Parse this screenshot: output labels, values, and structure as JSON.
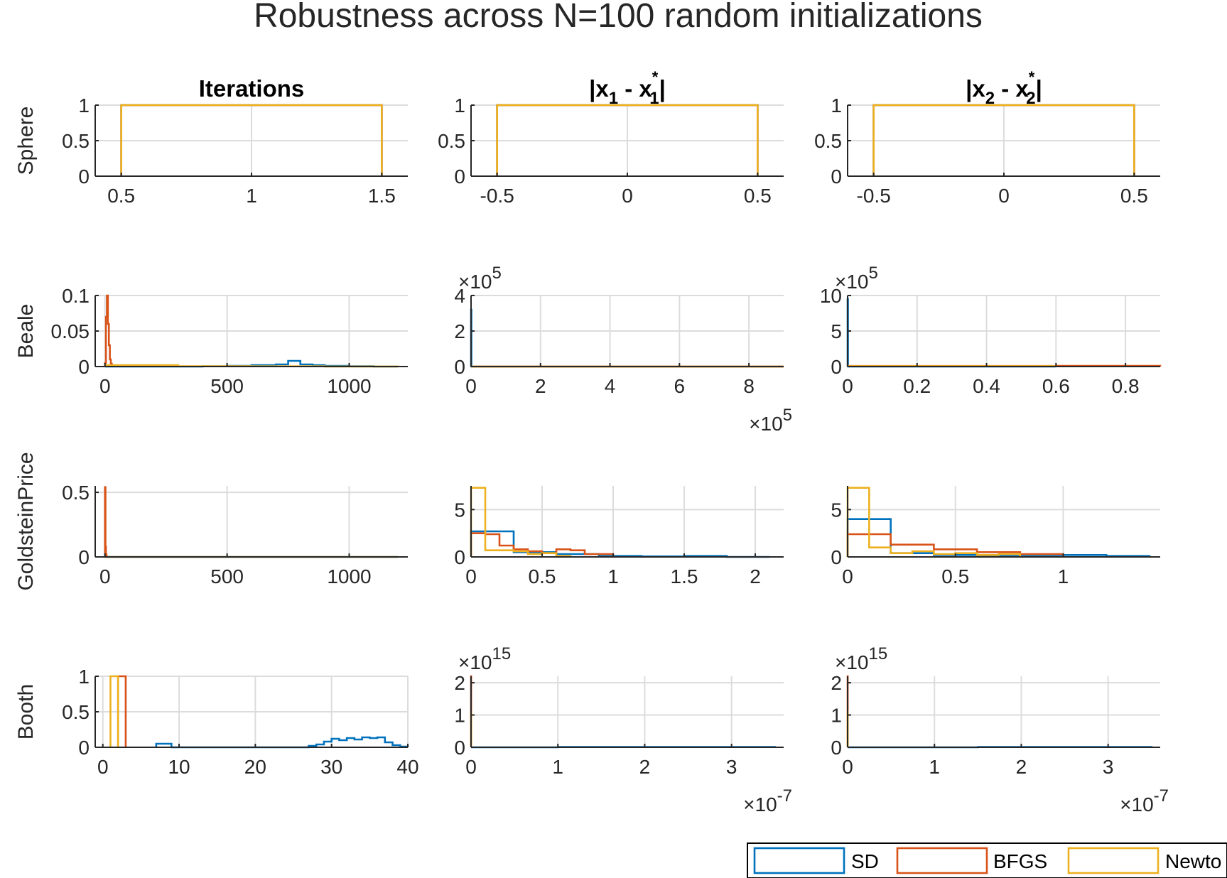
{
  "title": "Robustness across N=100 random initializations",
  "columns": [
    "Iterations",
    "|x_1 - x_1^*|",
    "|x_2 - x_2^*|"
  ],
  "rows": [
    "Sphere",
    "Beale",
    "GoldsteinPrice",
    "Booth"
  ],
  "legend": {
    "entries": [
      {
        "label": "SD",
        "color": "#0072BD"
      },
      {
        "label": "BFGS",
        "color": "#D95319"
      },
      {
        "label": "Newto",
        "color": "#EDB120"
      }
    ],
    "placement": "bottom-right"
  },
  "colors": {
    "SD": "#0072BD",
    "BFGS": "#D95319",
    "Newton": "#EDB120",
    "grid": "#DCDCDC",
    "axis": "#262626"
  },
  "chart_data": [
    {
      "type": "histogram",
      "row": "Sphere",
      "column": "Iterations",
      "xlim": [
        0.4,
        1.6
      ],
      "ylim": [
        0,
        1
      ],
      "xticks": [
        0.5,
        1,
        1.5
      ],
      "xticklabels": [
        "0.5",
        "1",
        "1.5"
      ],
      "yticks": [
        0,
        0.5,
        1
      ],
      "yticklabels": [
        "0",
        "0.5",
        "1"
      ],
      "series": [
        {
          "edges": [
            0.5,
            1.5
          ],
          "values": [
            1
          ]
        },
        {
          "edges": [
            0.5,
            1.5
          ],
          "values": [
            1
          ]
        },
        {
          "edges": [
            0.5,
            1.5
          ],
          "values": [
            1
          ]
        }
      ]
    },
    {
      "type": "histogram",
      "row": "Sphere",
      "column": "|x_1 - x_1^*|",
      "xlim": [
        -0.6,
        0.6
      ],
      "ylim": [
        0,
        1
      ],
      "xticks": [
        -0.5,
        0,
        0.5
      ],
      "xticklabels": [
        "-0.5",
        "0",
        "0.5"
      ],
      "yticks": [
        0,
        0.5,
        1
      ],
      "yticklabels": [
        "0",
        "0.5",
        "1"
      ],
      "series": [
        {
          "edges": [
            -0.5,
            0.5
          ],
          "values": [
            1
          ]
        },
        {
          "edges": [
            -0.5,
            0.5
          ],
          "values": [
            1
          ]
        },
        {
          "edges": [
            -0.5,
            0.5
          ],
          "values": [
            1
          ]
        }
      ]
    },
    {
      "type": "histogram",
      "row": "Sphere",
      "column": "|x_2 - x_2^*|",
      "xlim": [
        -0.6,
        0.6
      ],
      "ylim": [
        0,
        1
      ],
      "xticks": [
        -0.5,
        0,
        0.5
      ],
      "xticklabels": [
        "-0.5",
        "0",
        "0.5"
      ],
      "yticks": [
        0,
        0.5,
        1
      ],
      "yticklabels": [
        "0",
        "0.5",
        "1"
      ],
      "series": [
        {
          "edges": [
            -0.5,
            0.5
          ],
          "values": [
            1
          ]
        },
        {
          "edges": [
            -0.5,
            0.5
          ],
          "values": [
            1
          ]
        },
        {
          "edges": [
            -0.5,
            0.5
          ],
          "values": [
            1
          ]
        }
      ]
    },
    {
      "type": "histogram",
      "row": "Beale",
      "column": "Iterations",
      "xlim": [
        -40,
        1240
      ],
      "ylim": [
        0,
        0.1
      ],
      "xticks": [
        0,
        500,
        1000
      ],
      "xticklabels": [
        "0",
        "500",
        "1000"
      ],
      "yticks": [
        0,
        0.05,
        0.1
      ],
      "yticklabels": [
        "0",
        "0.05",
        "0.1"
      ],
      "series": [
        {
          "edges": [
            0,
            400,
            500,
            600,
            700,
            750,
            800,
            850,
            900,
            1000,
            1100,
            1200
          ],
          "values": [
            0,
            0.0005,
            0.001,
            0.002,
            0.003,
            0.008,
            0.003,
            0.002,
            0.001,
            0.0005,
            0
          ]
        },
        {
          "edges": [
            0,
            4,
            8,
            12,
            16,
            20,
            24,
            28,
            32
          ],
          "values": [
            0.005,
            0.07,
            0.1,
            0.06,
            0.03,
            0.01,
            0.004,
            0.001
          ]
        },
        {
          "edges": [
            0,
            300,
            600,
            900,
            1200
          ],
          "values": [
            0.002,
            0.0005,
            0.0003,
            0.0001
          ]
        }
      ]
    },
    {
      "type": "histogram",
      "row": "Beale",
      "column": "|x_1 - x_1^*|",
      "xlim": [
        0,
        900000
      ],
      "ylim": [
        0,
        400000
      ],
      "xticks": [
        0,
        200000,
        400000,
        600000,
        800000
      ],
      "xticklabels": [
        "0",
        "2",
        "4",
        "6",
        "8"
      ],
      "yticks": [
        0,
        200000,
        400000
      ],
      "yticklabels": [
        "0",
        "2",
        "4"
      ],
      "yexponent": "10^5",
      "xexponent": "10^5",
      "series": [
        {
          "edges": [
            0,
            1000,
            900000
          ],
          "values": [
            320000,
            0
          ]
        },
        {
          "edges": [
            0,
            900000
          ],
          "values": [
            0
          ]
        },
        {
          "edges": [
            0,
            900000
          ],
          "values": [
            0
          ]
        }
      ]
    },
    {
      "type": "histogram",
      "row": "Beale",
      "column": "|x_2 - x_2^*|",
      "xlim": [
        0,
        0.9
      ],
      "ylim": [
        0,
        1000000
      ],
      "xticks": [
        0,
        0.2,
        0.4,
        0.6,
        0.8
      ],
      "xticklabels": [
        "0",
        "0.2",
        "0.4",
        "0.6",
        "0.8"
      ],
      "yticks": [
        0,
        500000,
        1000000
      ],
      "yticklabels": [
        "0",
        "5",
        "10"
      ],
      "yexponent": "10^5",
      "series": [
        {
          "edges": [
            0,
            0.001,
            0.6
          ],
          "values": [
            950000,
            0
          ]
        },
        {
          "edges": [
            0,
            0.6,
            0.9
          ],
          "values": [
            8000,
            10000
          ]
        },
        {
          "edges": [
            0,
            0.6
          ],
          "values": [
            6000
          ]
        }
      ]
    },
    {
      "type": "histogram",
      "row": "GoldsteinPrice",
      "column": "Iterations",
      "xlim": [
        -40,
        1240
      ],
      "ylim": [
        0,
        0.55
      ],
      "xticks": [
        0,
        500,
        1000
      ],
      "xticklabels": [
        "0",
        "500",
        "1000"
      ],
      "yticks": [
        0,
        0.5
      ],
      "yticklabels": [
        "0",
        "0.5"
      ],
      "series": [
        {
          "edges": [
            0,
            1200
          ],
          "values": [
            0
          ]
        },
        {
          "edges": [
            0,
            2,
            4,
            6,
            8,
            10
          ],
          "values": [
            0.54,
            0.08,
            0.02,
            0.005,
            0
          ]
        },
        {
          "edges": [
            0,
            1200
          ],
          "values": [
            0
          ]
        }
      ]
    },
    {
      "type": "histogram",
      "row": "GoldsteinPrice",
      "column": "|x_1 - x_1^*|",
      "xlim": [
        0,
        2.2
      ],
      "ylim": [
        0,
        7.5
      ],
      "xticks": [
        0,
        0.5,
        1,
        1.5,
        2
      ],
      "xticklabels": [
        "0",
        "0.5",
        "1",
        "1.5",
        "2"
      ],
      "yticks": [
        0,
        5
      ],
      "yticklabels": [
        "0",
        "5"
      ],
      "series": [
        {
          "edges": [
            0,
            0.3,
            0.6,
            0.9,
            1.2,
            1.5,
            1.8,
            2.1
          ],
          "values": [
            2.7,
            0.5,
            0.3,
            0.1,
            0.05,
            0.1,
            0
          ]
        },
        {
          "edges": [
            0,
            0.1,
            0.2,
            0.3,
            0.4,
            0.5,
            0.6,
            0.7,
            0.8,
            0.9,
            1.0
          ],
          "values": [
            2.5,
            2.4,
            1.2,
            0.8,
            0.6,
            0.4,
            0.8,
            0.7,
            0.3,
            0.3
          ]
        },
        {
          "edges": [
            0,
            0.1,
            0.2,
            0.3,
            0.4,
            0.5,
            0.6,
            0.7
          ],
          "values": [
            7.3,
            0.7,
            0.7,
            0.6,
            0.3,
            0.4,
            0.1
          ]
        }
      ]
    },
    {
      "type": "histogram",
      "row": "GoldsteinPrice",
      "column": "|x_2 - x_2^*|",
      "xlim": [
        0,
        1.45
      ],
      "ylim": [
        0,
        7.5
      ],
      "xticks": [
        0,
        0.5,
        1
      ],
      "xticklabels": [
        "0",
        "0.5",
        "1"
      ],
      "yticks": [
        0,
        5
      ],
      "yticklabels": [
        "0",
        "5"
      ],
      "series": [
        {
          "edges": [
            0,
            0.2,
            0.4,
            0.6,
            0.8,
            1.0,
            1.2,
            1.4
          ],
          "values": [
            4.0,
            0.4,
            0.2,
            0.1,
            0.1,
            0.2,
            0.1
          ]
        },
        {
          "edges": [
            0,
            0.2,
            0.4,
            0.6,
            0.8,
            1.0
          ],
          "values": [
            2.4,
            1.3,
            0.8,
            0.5,
            0.3
          ]
        },
        {
          "edges": [
            0,
            0.1,
            0.2,
            0.3,
            0.4,
            0.5,
            0.6,
            0.7,
            0.8
          ],
          "values": [
            7.3,
            1.0,
            0.4,
            0.6,
            0.3,
            0.4,
            0.2,
            0.3
          ]
        }
      ]
    },
    {
      "type": "histogram",
      "row": "Booth",
      "column": "Iterations",
      "xlim": [
        -1,
        40
      ],
      "ylim": [
        0,
        1
      ],
      "xticks": [
        0,
        10,
        20,
        30,
        40
      ],
      "xticklabels": [
        "0",
        "10",
        "20",
        "30",
        "40"
      ],
      "yticks": [
        0,
        0.5,
        1
      ],
      "yticklabels": [
        "0",
        "0.5",
        "1"
      ],
      "series": [
        {
          "edges": [
            7,
            9,
            11,
            27,
            28,
            29,
            30,
            31,
            32,
            33,
            34,
            35,
            36,
            37,
            38,
            39,
            40
          ],
          "values": [
            0.05,
            0,
            0,
            0.02,
            0.04,
            0.08,
            0.12,
            0.1,
            0.13,
            0.11,
            0.14,
            0.13,
            0.14,
            0.07,
            0.03,
            0.01
          ]
        },
        {
          "edges": [
            2,
            3
          ],
          "values": [
            1
          ]
        },
        {
          "edges": [
            1,
            2
          ],
          "values": [
            1
          ]
        }
      ]
    },
    {
      "type": "histogram",
      "row": "Booth",
      "column": "|x_1 - x_1^*|",
      "xlim": [
        0,
        3.6e-07
      ],
      "ylim": [
        0,
        2200000000000000.0
      ],
      "xticks": [
        0,
        1e-07,
        2e-07,
        3e-07
      ],
      "xticklabels": [
        "0",
        "1",
        "2",
        "3"
      ],
      "yticks": [
        0,
        1000000000000000.0,
        2000000000000000.0
      ],
      "yticklabels": [
        "0",
        "1",
        "2"
      ],
      "yexponent": "10^15",
      "xexponent": "10^-7",
      "series": [
        {
          "edges": [
            0,
            1e-07,
            3.5e-07
          ],
          "values": [
            0,
            10000000000000.0
          ]
        },
        {
          "edges": [
            0,
            1e-10
          ],
          "values": [
            2200000000000000.0
          ]
        },
        {
          "edges": [
            0,
            1e-10
          ],
          "values": [
            1100000000000000.0
          ]
        }
      ]
    },
    {
      "type": "histogram",
      "row": "Booth",
      "column": "|x_2 - x_2^*|",
      "xlim": [
        0,
        3.6e-07
      ],
      "ylim": [
        0,
        2200000000000000.0
      ],
      "xticks": [
        0,
        1e-07,
        2e-07,
        3e-07
      ],
      "xticklabels": [
        "0",
        "1",
        "2",
        "3"
      ],
      "yticks": [
        0,
        1000000000000000.0,
        2000000000000000.0
      ],
      "yticklabels": [
        "0",
        "1",
        "2"
      ],
      "yexponent": "10^15",
      "xexponent": "10^-7",
      "series": [
        {
          "edges": [
            0,
            1.5e-07,
            3.5e-07
          ],
          "values": [
            0,
            10000000000000.0
          ]
        },
        {
          "edges": [
            0,
            1e-10
          ],
          "values": [
            2200000000000000.0
          ]
        },
        {
          "edges": [
            0,
            1e-10
          ],
          "values": [
            1100000000000000.0
          ]
        }
      ]
    }
  ]
}
